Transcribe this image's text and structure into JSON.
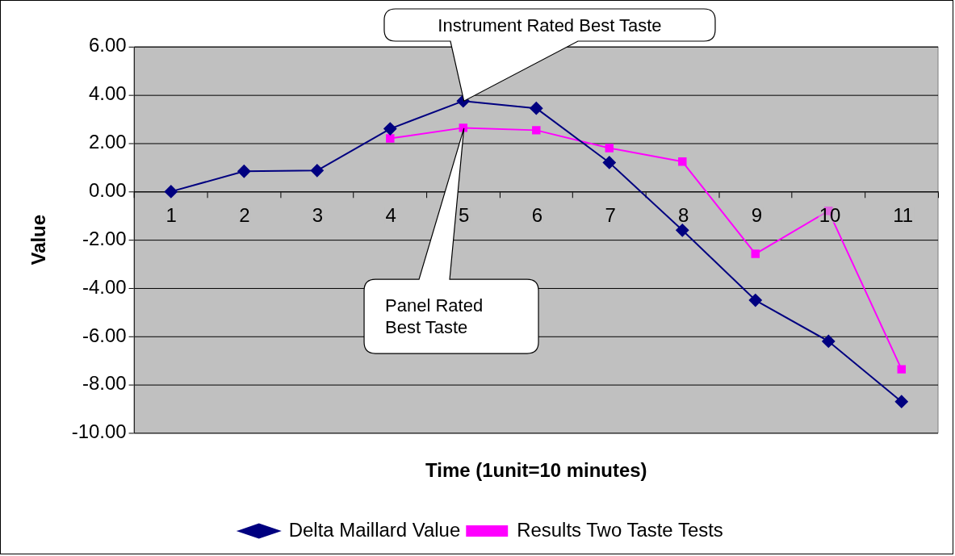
{
  "chart_data": {
    "type": "line",
    "xlabel": "Time (1unit=10 minutes)",
    "ylabel": "Value",
    "categories": [
      "1",
      "2",
      "3",
      "4",
      "5",
      "6",
      "7",
      "8",
      "9",
      "10",
      "11"
    ],
    "series": [
      {
        "name": "Delta Maillard Value",
        "color": "#000080",
        "marker": "diamond",
        "values": [
          0,
          0.84,
          0.87,
          2.6,
          3.75,
          3.45,
          1.2,
          -1.6,
          -4.5,
          -6.2,
          -8.7
        ]
      },
      {
        "name": "Results Two Taste Tests",
        "color": "#ff00ff",
        "marker": "square",
        "values": [
          null,
          null,
          null,
          2.2,
          2.64,
          2.54,
          1.8,
          1.24,
          -2.58,
          -0.8,
          -7.36
        ]
      }
    ],
    "ylim": [
      -10,
      6
    ],
    "yticks": [
      {
        "value": -10,
        "label": "-10.00"
      },
      {
        "value": -8,
        "label": "-8.00"
      },
      {
        "value": -6,
        "label": "-6.00"
      },
      {
        "value": -4,
        "label": "-4.00"
      },
      {
        "value": -2,
        "label": "-2.00"
      },
      {
        "value": 0,
        "label": "0.00"
      },
      {
        "value": 2,
        "label": "2.00"
      },
      {
        "value": 4,
        "label": "4.00"
      },
      {
        "value": 6,
        "label": "6.00"
      }
    ],
    "grid": "y",
    "legend": "bottom",
    "line_style": "solid",
    "annotations": [
      "Instrument Rated Best Taste",
      "Panel Rated Best Taste"
    ]
  }
}
